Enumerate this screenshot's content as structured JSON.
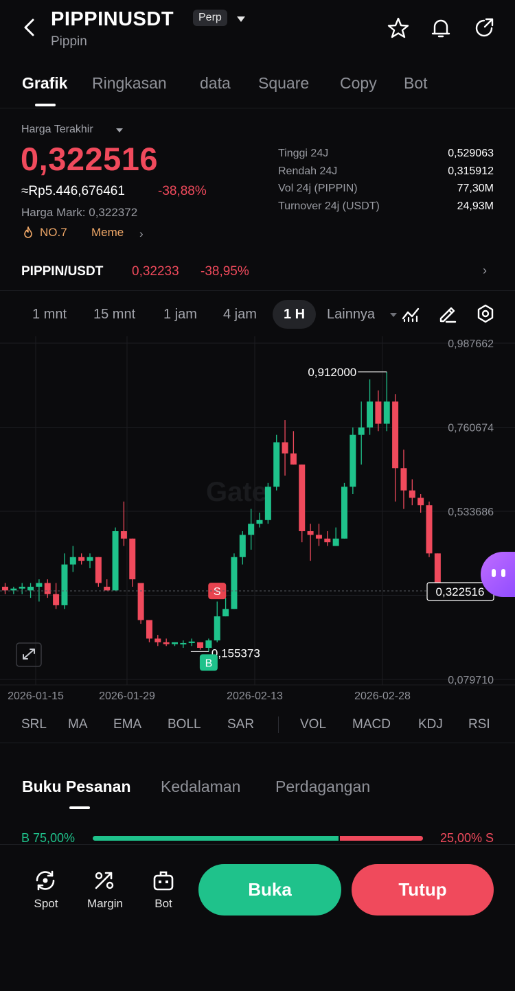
{
  "header": {
    "title": "PIPPINUSDT",
    "subtitle": "Pippin",
    "badge": "Perp"
  },
  "tabs": [
    "Grafik",
    "Ringkasan",
    "data",
    "Square",
    "Copy",
    "Bot"
  ],
  "price": {
    "label": "Harga Terakhir",
    "last": "0,322516",
    "rp": "≈Rp5.446,676461",
    "change": "-38,88%",
    "mark": "Harga Mark: 0,322372",
    "rank": "NO.7",
    "tag": "Meme"
  },
  "stats": [
    {
      "label": "Tinggi 24J",
      "value": "0,529063"
    },
    {
      "label": "Rendah 24J",
      "value": "0,315912"
    },
    {
      "label": "Vol 24j (PIPPIN)",
      "value": "77,30M"
    },
    {
      "label": "Turnover 24j (USDT)",
      "value": "24,93M"
    }
  ],
  "spot_pair": {
    "name": "PIPPIN/USDT",
    "price": "0,32233",
    "change": "-38,95%"
  },
  "timeframes": [
    "1 mnt",
    "15 mnt",
    "1 jam",
    "4 jam",
    "1 H",
    "Lainnya"
  ],
  "active_timeframe": "1 H",
  "indicators": [
    "SRL",
    "MA",
    "EMA",
    "BOLL",
    "SAR",
    "VOL",
    "MACD",
    "KDJ",
    "RSI"
  ],
  "orderbook": {
    "tabs": [
      "Buku Pesanan",
      "Kedalaman",
      "Perdagangan"
    ],
    "buy_pct": "B 75,00%",
    "sell_pct": "25,00% S",
    "buy_ratio": 0.75
  },
  "actions": {
    "spot": "Spot",
    "margin": "Margin",
    "bot": "Bot",
    "open": "Buka",
    "close": "Tutup"
  },
  "colors": {
    "up": "#1fc28b",
    "down": "#f04a5c",
    "accent_orange": "#f0a868"
  },
  "chart_data": {
    "type": "candlestick",
    "x_ticks": [
      "2026-01-15",
      "2026-01-29",
      "2026-02-13",
      "2026-02-28"
    ],
    "y_ticks": [
      "0,987662",
      "0,760674",
      "0,533686",
      "0,322516",
      "0,079710"
    ],
    "ylim": [
      0.07971,
      0.987662
    ],
    "high_label": "0,912000",
    "low_label": "0,155373",
    "current_price": "0,322516",
    "sell_marker": "S",
    "buy_marker": "B",
    "watermark": "Gate",
    "candles": [
      {
        "o": 0.33,
        "h": 0.34,
        "l": 0.31,
        "c": 0.32
      },
      {
        "o": 0.32,
        "h": 0.33,
        "l": 0.31,
        "c": 0.325
      },
      {
        "o": 0.325,
        "h": 0.34,
        "l": 0.31,
        "c": 0.33
      },
      {
        "o": 0.32,
        "h": 0.34,
        "l": 0.3,
        "c": 0.33
      },
      {
        "o": 0.33,
        "h": 0.35,
        "l": 0.29,
        "c": 0.34
      },
      {
        "o": 0.34,
        "h": 0.35,
        "l": 0.3,
        "c": 0.31
      },
      {
        "o": 0.31,
        "h": 0.34,
        "l": 0.27,
        "c": 0.28
      },
      {
        "o": 0.28,
        "h": 0.42,
        "l": 0.27,
        "c": 0.39
      },
      {
        "o": 0.39,
        "h": 0.44,
        "l": 0.37,
        "c": 0.41
      },
      {
        "o": 0.41,
        "h": 0.42,
        "l": 0.39,
        "c": 0.4
      },
      {
        "o": 0.4,
        "h": 0.42,
        "l": 0.38,
        "c": 0.41
      },
      {
        "o": 0.41,
        "h": 0.41,
        "l": 0.33,
        "c": 0.34
      },
      {
        "o": 0.33,
        "h": 0.35,
        "l": 0.32,
        "c": 0.32
      },
      {
        "o": 0.32,
        "h": 0.49,
        "l": 0.32,
        "c": 0.48
      },
      {
        "o": 0.48,
        "h": 0.56,
        "l": 0.44,
        "c": 0.46
      },
      {
        "o": 0.46,
        "h": 0.46,
        "l": 0.33,
        "c": 0.35
      },
      {
        "o": 0.34,
        "h": 0.34,
        "l": 0.23,
        "c": 0.24
      },
      {
        "o": 0.24,
        "h": 0.24,
        "l": 0.18,
        "c": 0.19
      },
      {
        "o": 0.19,
        "h": 0.2,
        "l": 0.17,
        "c": 0.18
      },
      {
        "o": 0.18,
        "h": 0.19,
        "l": 0.17,
        "c": 0.175
      },
      {
        "o": 0.175,
        "h": 0.18,
        "l": 0.17,
        "c": 0.18
      },
      {
        "o": 0.175,
        "h": 0.185,
        "l": 0.165,
        "c": 0.178
      },
      {
        "o": 0.178,
        "h": 0.19,
        "l": 0.17,
        "c": 0.182
      },
      {
        "o": 0.18,
        "h": 0.18,
        "l": 0.16,
        "c": 0.165
      },
      {
        "o": 0.165,
        "h": 0.19,
        "l": 0.155,
        "c": 0.185
      },
      {
        "o": 0.185,
        "h": 0.29,
        "l": 0.18,
        "c": 0.25
      },
      {
        "o": 0.25,
        "h": 0.3,
        "l": 0.25,
        "c": 0.27
      },
      {
        "o": 0.27,
        "h": 0.42,
        "l": 0.27,
        "c": 0.41
      },
      {
        "o": 0.41,
        "h": 0.48,
        "l": 0.39,
        "c": 0.47
      },
      {
        "o": 0.47,
        "h": 0.54,
        "l": 0.43,
        "c": 0.5
      },
      {
        "o": 0.5,
        "h": 0.53,
        "l": 0.49,
        "c": 0.51
      },
      {
        "o": 0.51,
        "h": 0.61,
        "l": 0.5,
        "c": 0.6
      },
      {
        "o": 0.6,
        "h": 0.74,
        "l": 0.59,
        "c": 0.72
      },
      {
        "o": 0.72,
        "h": 0.78,
        "l": 0.63,
        "c": 0.69
      },
      {
        "o": 0.69,
        "h": 0.75,
        "l": 0.66,
        "c": 0.66
      },
      {
        "o": 0.66,
        "h": 0.66,
        "l": 0.45,
        "c": 0.48
      },
      {
        "o": 0.48,
        "h": 0.5,
        "l": 0.4,
        "c": 0.47
      },
      {
        "o": 0.47,
        "h": 0.5,
        "l": 0.44,
        "c": 0.46
      },
      {
        "o": 0.46,
        "h": 0.48,
        "l": 0.44,
        "c": 0.45
      },
      {
        "o": 0.44,
        "h": 0.49,
        "l": 0.44,
        "c": 0.46
      },
      {
        "o": 0.46,
        "h": 0.61,
        "l": 0.46,
        "c": 0.6
      },
      {
        "o": 0.6,
        "h": 0.76,
        "l": 0.58,
        "c": 0.74
      },
      {
        "o": 0.74,
        "h": 0.83,
        "l": 0.66,
        "c": 0.76
      },
      {
        "o": 0.76,
        "h": 0.89,
        "l": 0.74,
        "c": 0.83
      },
      {
        "o": 0.83,
        "h": 0.86,
        "l": 0.75,
        "c": 0.77
      },
      {
        "o": 0.77,
        "h": 0.91,
        "l": 0.75,
        "c": 0.83
      },
      {
        "o": 0.83,
        "h": 0.85,
        "l": 0.56,
        "c": 0.65
      },
      {
        "o": 0.65,
        "h": 0.7,
        "l": 0.54,
        "c": 0.59
      },
      {
        "o": 0.59,
        "h": 0.62,
        "l": 0.55,
        "c": 0.57
      },
      {
        "o": 0.57,
        "h": 0.58,
        "l": 0.53,
        "c": 0.55
      },
      {
        "o": 0.55,
        "h": 0.56,
        "l": 0.41,
        "c": 0.42
      },
      {
        "o": 0.42,
        "h": 0.42,
        "l": 0.32,
        "c": 0.33
      }
    ]
  }
}
